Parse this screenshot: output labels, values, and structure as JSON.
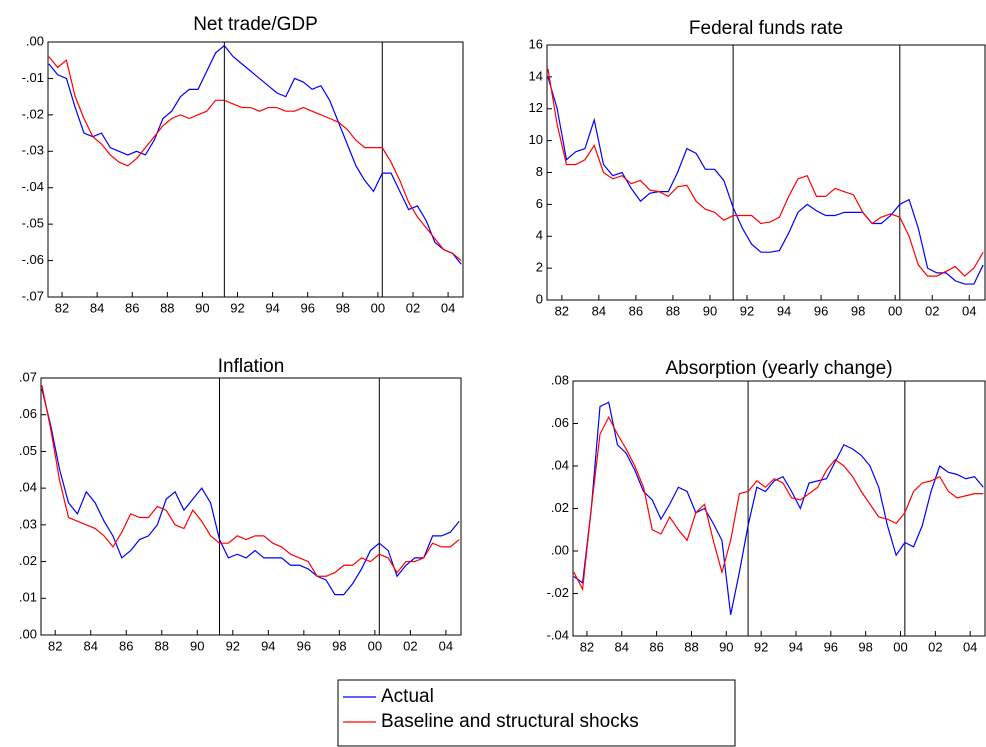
{
  "chart_data": [
    {
      "type": "line",
      "title": "Net trade/GDP",
      "x": [
        1981.25,
        1981.75,
        1982.25,
        1982.75,
        1983.25,
        1983.75,
        1984.25,
        1984.75,
        1985.25,
        1985.75,
        1986.25,
        1986.75,
        1987.25,
        1987.75,
        1988.25,
        1988.75,
        1989.25,
        1989.75,
        1990.25,
        1990.75,
        1991.25,
        1991.75,
        1992.25,
        1992.75,
        1993.25,
        1993.75,
        1994.25,
        1994.75,
        1995.25,
        1995.75,
        1996.25,
        1996.75,
        1997.25,
        1997.75,
        1998.25,
        1998.75,
        1999.25,
        1999.75,
        2000.25,
        2000.75,
        2001.25,
        2001.75,
        2002.25,
        2002.75,
        2003.25,
        2003.75,
        2004.25,
        2004.75
      ],
      "xlim": [
        1981.2,
        2004.85
      ],
      "xticks": [
        {
          "value": 1982,
          "label": "82"
        },
        {
          "value": 1984,
          "label": "84"
        },
        {
          "value": 1986,
          "label": "86"
        },
        {
          "value": 1988,
          "label": "88"
        },
        {
          "value": 1990,
          "label": "90"
        },
        {
          "value": 1992,
          "label": "92"
        },
        {
          "value": 1994,
          "label": "94"
        },
        {
          "value": 1996,
          "label": "96"
        },
        {
          "value": 1998,
          "label": "98"
        },
        {
          "value": 2000,
          "label": "00"
        },
        {
          "value": 2002,
          "label": "02"
        },
        {
          "value": 2004,
          "label": "04"
        }
      ],
      "ylim": [
        -0.07,
        0.0
      ],
      "yticks": [
        {
          "value": 0.0,
          "label": ".00"
        },
        {
          "value": -0.01,
          "label": "-.01"
        },
        {
          "value": -0.02,
          "label": "-.02"
        },
        {
          "value": -0.03,
          "label": "-.03"
        },
        {
          "value": -0.04,
          "label": "-.04"
        },
        {
          "value": -0.05,
          "label": "-.05"
        },
        {
          "value": -0.06,
          "label": "-.06"
        },
        {
          "value": -0.07,
          "label": "-.07"
        }
      ],
      "vlines": [
        1991.25,
        2000.25
      ],
      "series": [
        {
          "name": "Actual",
          "color": "#0000ff",
          "values": [
            -0.006,
            -0.009,
            -0.01,
            -0.018,
            -0.025,
            -0.026,
            -0.025,
            -0.029,
            -0.03,
            -0.031,
            -0.03,
            -0.031,
            -0.027,
            -0.021,
            -0.019,
            -0.015,
            -0.013,
            -0.013,
            -0.008,
            -0.003,
            -0.001,
            -0.004,
            -0.006,
            -0.008,
            -0.01,
            -0.012,
            -0.014,
            -0.015,
            -0.01,
            -0.011,
            -0.013,
            -0.012,
            -0.016,
            -0.022,
            -0.028,
            -0.034,
            -0.038,
            -0.041,
            -0.036,
            -0.036,
            -0.041,
            -0.046,
            -0.045,
            -0.049,
            -0.055,
            -0.057,
            -0.058,
            -0.061
          ]
        },
        {
          "name": "Baseline and structural shocks",
          "color": "#ff0000",
          "values": [
            -0.004,
            -0.007,
            -0.005,
            -0.015,
            -0.021,
            -0.026,
            -0.028,
            -0.031,
            -0.033,
            -0.034,
            -0.032,
            -0.029,
            -0.026,
            -0.023,
            -0.021,
            -0.02,
            -0.021,
            -0.02,
            -0.019,
            -0.016,
            -0.016,
            -0.017,
            -0.018,
            -0.018,
            -0.019,
            -0.018,
            -0.018,
            -0.019,
            -0.019,
            -0.018,
            -0.019,
            -0.02,
            -0.021,
            -0.022,
            -0.024,
            -0.027,
            -0.029,
            -0.029,
            -0.029,
            -0.033,
            -0.038,
            -0.044,
            -0.048,
            -0.051,
            -0.054,
            -0.057,
            -0.058,
            -0.06
          ]
        }
      ]
    },
    {
      "type": "line",
      "title": "Federal funds rate",
      "x": [
        1981.25,
        1981.75,
        1982.25,
        1982.75,
        1983.25,
        1983.75,
        1984.25,
        1984.75,
        1985.25,
        1985.75,
        1986.25,
        1986.75,
        1987.25,
        1987.75,
        1988.25,
        1988.75,
        1989.25,
        1989.75,
        1990.25,
        1990.75,
        1991.25,
        1991.75,
        1992.25,
        1992.75,
        1993.25,
        1993.75,
        1994.25,
        1994.75,
        1995.25,
        1995.75,
        1996.25,
        1996.75,
        1997.25,
        1997.75,
        1998.25,
        1998.75,
        1999.25,
        1999.75,
        2000.25,
        2000.75,
        2001.25,
        2001.75,
        2002.25,
        2002.75,
        2003.25,
        2003.75,
        2004.25,
        2004.75
      ],
      "xlim": [
        1981.2,
        2004.85
      ],
      "xticks": [
        {
          "value": 1982,
          "label": "82"
        },
        {
          "value": 1984,
          "label": "84"
        },
        {
          "value": 1986,
          "label": "86"
        },
        {
          "value": 1988,
          "label": "88"
        },
        {
          "value": 1990,
          "label": "90"
        },
        {
          "value": 1992,
          "label": "92"
        },
        {
          "value": 1994,
          "label": "94"
        },
        {
          "value": 1996,
          "label": "96"
        },
        {
          "value": 1998,
          "label": "98"
        },
        {
          "value": 2000,
          "label": "00"
        },
        {
          "value": 2002,
          "label": "02"
        },
        {
          "value": 2004,
          "label": "04"
        }
      ],
      "ylim": [
        0,
        16
      ],
      "yticks": [
        0,
        2,
        4,
        6,
        8,
        10,
        12,
        14,
        16
      ],
      "vlines": [
        1991.25,
        2000.25
      ],
      "series": [
        {
          "name": "Actual",
          "color": "#0000ff",
          "values": [
            14.0,
            12.0,
            8.8,
            9.3,
            9.5,
            11.3,
            8.5,
            7.8,
            8.0,
            7.0,
            6.2,
            6.7,
            6.8,
            6.8,
            8.0,
            9.5,
            9.2,
            8.2,
            8.2,
            7.5,
            5.8,
            4.5,
            3.5,
            3.0,
            3.0,
            3.1,
            4.2,
            5.5,
            6.0,
            5.6,
            5.3,
            5.3,
            5.5,
            5.5,
            5.5,
            4.8,
            4.8,
            5.3,
            6.0,
            6.3,
            4.5,
            2.0,
            1.7,
            1.7,
            1.2,
            1.0,
            1.0,
            2.2
          ]
        },
        {
          "name": "Baseline and structural shocks",
          "color": "#ff0000",
          "values": [
            14.5,
            11.0,
            8.5,
            8.5,
            8.8,
            9.7,
            8.0,
            7.6,
            7.8,
            7.3,
            7.5,
            6.9,
            6.8,
            6.5,
            7.1,
            7.2,
            6.2,
            5.7,
            5.5,
            5.0,
            5.3,
            5.3,
            5.3,
            4.8,
            4.9,
            5.2,
            6.5,
            7.6,
            7.8,
            6.5,
            6.5,
            7.0,
            6.8,
            6.6,
            5.5,
            4.8,
            5.2,
            5.4,
            5.2,
            4.0,
            2.2,
            1.5,
            1.5,
            1.8,
            2.1,
            1.5,
            2.0,
            3.0
          ]
        }
      ]
    },
    {
      "type": "line",
      "title": "Inflation",
      "x": [
        1981.25,
        1981.75,
        1982.25,
        1982.75,
        1983.25,
        1983.75,
        1984.25,
        1984.75,
        1985.25,
        1985.75,
        1986.25,
        1986.75,
        1987.25,
        1987.75,
        1988.25,
        1988.75,
        1989.25,
        1989.75,
        1990.25,
        1990.75,
        1991.25,
        1991.75,
        1992.25,
        1992.75,
        1993.25,
        1993.75,
        1994.25,
        1994.75,
        1995.25,
        1995.75,
        1996.25,
        1996.75,
        1997.25,
        1997.75,
        1998.25,
        1998.75,
        1999.25,
        1999.75,
        2000.25,
        2000.75,
        2001.25,
        2001.75,
        2002.25,
        2002.75,
        2003.25,
        2003.75,
        2004.25,
        2004.75
      ],
      "xlim": [
        1981.2,
        2004.85
      ],
      "xticks": [
        {
          "value": 1982,
          "label": "82"
        },
        {
          "value": 1984,
          "label": "84"
        },
        {
          "value": 1986,
          "label": "86"
        },
        {
          "value": 1988,
          "label": "88"
        },
        {
          "value": 1990,
          "label": "90"
        },
        {
          "value": 1992,
          "label": "92"
        },
        {
          "value": 1994,
          "label": "94"
        },
        {
          "value": 1996,
          "label": "96"
        },
        {
          "value": 1998,
          "label": "98"
        },
        {
          "value": 2000,
          "label": "00"
        },
        {
          "value": 2002,
          "label": "02"
        },
        {
          "value": 2004,
          "label": "04"
        }
      ],
      "ylim": [
        0.0,
        0.07
      ],
      "yticks": [
        {
          "value": 0.0,
          "label": ".00"
        },
        {
          "value": 0.01,
          "label": ".01"
        },
        {
          "value": 0.02,
          "label": ".02"
        },
        {
          "value": 0.03,
          "label": ".03"
        },
        {
          "value": 0.04,
          "label": ".04"
        },
        {
          "value": 0.05,
          "label": ".05"
        },
        {
          "value": 0.06,
          "label": ".06"
        },
        {
          "value": 0.07,
          "label": ".07"
        }
      ],
      "vlines": [
        1991.25,
        2000.25
      ],
      "series": [
        {
          "name": "Actual",
          "color": "#0000ff",
          "values": [
            0.067,
            0.057,
            0.045,
            0.036,
            0.033,
            0.039,
            0.036,
            0.031,
            0.027,
            0.021,
            0.023,
            0.026,
            0.027,
            0.03,
            0.037,
            0.039,
            0.034,
            0.037,
            0.04,
            0.036,
            0.026,
            0.021,
            0.022,
            0.021,
            0.023,
            0.021,
            0.021,
            0.021,
            0.019,
            0.019,
            0.018,
            0.016,
            0.015,
            0.011,
            0.011,
            0.014,
            0.018,
            0.023,
            0.025,
            0.023,
            0.016,
            0.019,
            0.021,
            0.021,
            0.027,
            0.027,
            0.028,
            0.031
          ]
        },
        {
          "name": "Baseline and structural shocks",
          "color": "#ff0000",
          "values": [
            0.068,
            0.056,
            0.042,
            0.032,
            0.031,
            0.03,
            0.029,
            0.027,
            0.024,
            0.028,
            0.033,
            0.032,
            0.032,
            0.035,
            0.034,
            0.03,
            0.029,
            0.034,
            0.031,
            0.027,
            0.025,
            0.025,
            0.027,
            0.026,
            0.027,
            0.027,
            0.025,
            0.024,
            0.022,
            0.021,
            0.02,
            0.016,
            0.016,
            0.017,
            0.019,
            0.019,
            0.021,
            0.02,
            0.022,
            0.021,
            0.017,
            0.02,
            0.02,
            0.021,
            0.025,
            0.024,
            0.024,
            0.026
          ]
        }
      ]
    },
    {
      "type": "line",
      "title": "Absorption (yearly change)",
      "x": [
        1981.25,
        1981.75,
        1982.25,
        1982.75,
        1983.25,
        1983.75,
        1984.25,
        1984.75,
        1985.25,
        1985.75,
        1986.25,
        1986.75,
        1987.25,
        1987.75,
        1988.25,
        1988.75,
        1989.25,
        1989.75,
        1990.25,
        1990.75,
        1991.25,
        1991.75,
        1992.25,
        1992.75,
        1993.25,
        1993.75,
        1994.25,
        1994.75,
        1995.25,
        1995.75,
        1996.25,
        1996.75,
        1997.25,
        1997.75,
        1998.25,
        1998.75,
        1999.25,
        1999.75,
        2000.25,
        2000.75,
        2001.25,
        2001.75,
        2002.25,
        2002.75,
        2003.25,
        2003.75,
        2004.25,
        2004.75
      ],
      "xlim": [
        1981.2,
        2004.85
      ],
      "xticks": [
        {
          "value": 1982,
          "label": "82"
        },
        {
          "value": 1984,
          "label": "84"
        },
        {
          "value": 1986,
          "label": "86"
        },
        {
          "value": 1988,
          "label": "88"
        },
        {
          "value": 1990,
          "label": "90"
        },
        {
          "value": 1992,
          "label": "92"
        },
        {
          "value": 1994,
          "label": "94"
        },
        {
          "value": 1996,
          "label": "96"
        },
        {
          "value": 1998,
          "label": "98"
        },
        {
          "value": 2000,
          "label": "00"
        },
        {
          "value": 2002,
          "label": "02"
        },
        {
          "value": 2004,
          "label": "04"
        }
      ],
      "ylim": [
        -0.04,
        0.08
      ],
      "yticks": [
        {
          "value": -0.04,
          "label": "-.04"
        },
        {
          "value": -0.02,
          "label": "-.02"
        },
        {
          "value": 0.0,
          "label": ".00"
        },
        {
          "value": 0.02,
          "label": ".02"
        },
        {
          "value": 0.04,
          "label": ".04"
        },
        {
          "value": 0.06,
          "label": ".06"
        },
        {
          "value": 0.08,
          "label": ".08"
        }
      ],
      "vlines": [
        1991.25,
        2000.25
      ],
      "series": [
        {
          "name": "Actual",
          "color": "#0000ff",
          "values": [
            -0.012,
            -0.015,
            0.02,
            0.068,
            0.07,
            0.05,
            0.046,
            0.038,
            0.028,
            0.024,
            0.015,
            0.022,
            0.03,
            0.028,
            0.018,
            0.02,
            0.013,
            0.005,
            -0.03,
            -0.01,
            0.012,
            0.03,
            0.028,
            0.033,
            0.035,
            0.028,
            0.02,
            0.032,
            0.033,
            0.034,
            0.042,
            0.05,
            0.048,
            0.045,
            0.04,
            0.03,
            0.012,
            -0.002,
            0.004,
            0.002,
            0.012,
            0.028,
            0.04,
            0.037,
            0.036,
            0.034,
            0.035,
            0.03
          ]
        },
        {
          "name": "Baseline and structural shocks",
          "color": "#ff0000",
          "values": [
            -0.01,
            -0.018,
            0.02,
            0.055,
            0.063,
            0.055,
            0.048,
            0.04,
            0.03,
            0.01,
            0.008,
            0.016,
            0.01,
            0.005,
            0.018,
            0.022,
            0.005,
            -0.01,
            0.005,
            0.027,
            0.028,
            0.033,
            0.03,
            0.034,
            0.032,
            0.025,
            0.024,
            0.027,
            0.03,
            0.038,
            0.043,
            0.04,
            0.035,
            0.028,
            0.022,
            0.016,
            0.015,
            0.013,
            0.018,
            0.028,
            0.032,
            0.033,
            0.035,
            0.028,
            0.025,
            0.026,
            0.027,
            0.027
          ]
        }
      ]
    }
  ]
}
